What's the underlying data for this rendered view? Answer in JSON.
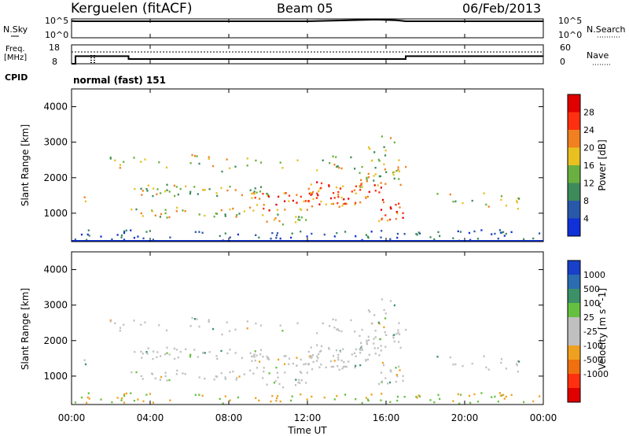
{
  "header": {
    "station": "Kerguelen (fitACF)",
    "beam": "Beam 05",
    "date": "06/Feb/2013"
  },
  "noise_panel": {
    "left_label": "N.Sky",
    "right_label": "N.Search",
    "left_ticks": [
      "10^5",
      "10^0"
    ],
    "right_ticks": [
      "10^5",
      "10^0"
    ]
  },
  "freq_panel": {
    "left_label_line1": "Freq.",
    "left_label_line2": "[MHz]",
    "right_label": "Nave",
    "left_ticks": [
      "18",
      "8"
    ],
    "right_ticks": [
      "60",
      "0"
    ]
  },
  "cpid": {
    "label": "CPID",
    "text": "normal (fast) 151"
  },
  "time_axis": {
    "ticks": [
      "00:00",
      "04:00",
      "08:00",
      "12:00",
      "16:00",
      "20:00",
      "00:00"
    ],
    "label": "Time UT",
    "range_hours": [
      0,
      24
    ]
  },
  "power_panel": {
    "ylabel": "Slant Range [km]",
    "yticks": [
      "1000",
      "2000",
      "3000",
      "4000"
    ],
    "ylim": [
      200,
      4500
    ],
    "colorbar_label": "Power [dB]",
    "colorbar_ticks": [
      "4",
      "8",
      "12",
      "16",
      "20",
      "24",
      "28"
    ],
    "colors": [
      "#1030d8",
      "#2858a8",
      "#3d8a5a",
      "#6ab040",
      "#e8c020",
      "#f08020",
      "#ff3010",
      "#e00000"
    ]
  },
  "velocity_panel": {
    "ylabel": "Slant Range [km]",
    "yticks": [
      "1000",
      "2000",
      "3000",
      "4000"
    ],
    "ylim": [
      200,
      4500
    ],
    "colorbar_label": "Velocity [m s^-1]",
    "colorbar_ticks": [
      "1000",
      "500",
      "100",
      "25",
      "-25",
      "-100",
      "-500",
      "-1000"
    ],
    "colors": [
      "#1840c8",
      "#2c6cb0",
      "#3c9068",
      "#66c040",
      "#c0c0c0",
      "#c0c0c0",
      "#f0a020",
      "#f07010",
      "#ff3010",
      "#e00000"
    ]
  },
  "chart_data": [
    {
      "type": "line",
      "title": "N.Sky / N.Search",
      "x": [
        0,
        0.2,
        4,
        8,
        12,
        13.5,
        15.5,
        16.5,
        17,
        24
      ],
      "series": [
        {
          "values": [
            5.0,
            4.9,
            4.9,
            4.9,
            4.9,
            5.1,
            5.4,
            5.2,
            4.9,
            4.9
          ]
        }
      ]
    },
    {
      "type": "line",
      "title": "Freq. [MHz] / Nave",
      "x": [
        0,
        0.2,
        0.2,
        2.9,
        2.9,
        17,
        17,
        24
      ],
      "series": [
        {
          "values": [
            8,
            8,
            12,
            12,
            10.5,
            10.5,
            12,
            12
          ]
        }
      ]
    },
    {
      "type": "heatmap",
      "title": "Power [dB]",
      "xlabel": "Time UT",
      "ylabel": "Slant Range [km]",
      "ylim": [
        200,
        4500
      ],
      "xlim": [
        0,
        24
      ]
    },
    {
      "type": "heatmap",
      "title": "Velocity [m s-1]",
      "xlabel": "Time UT",
      "ylabel": "Slant Range [km]",
      "ylim": [
        200,
        4500
      ],
      "xlim": [
        0,
        24
      ]
    }
  ]
}
